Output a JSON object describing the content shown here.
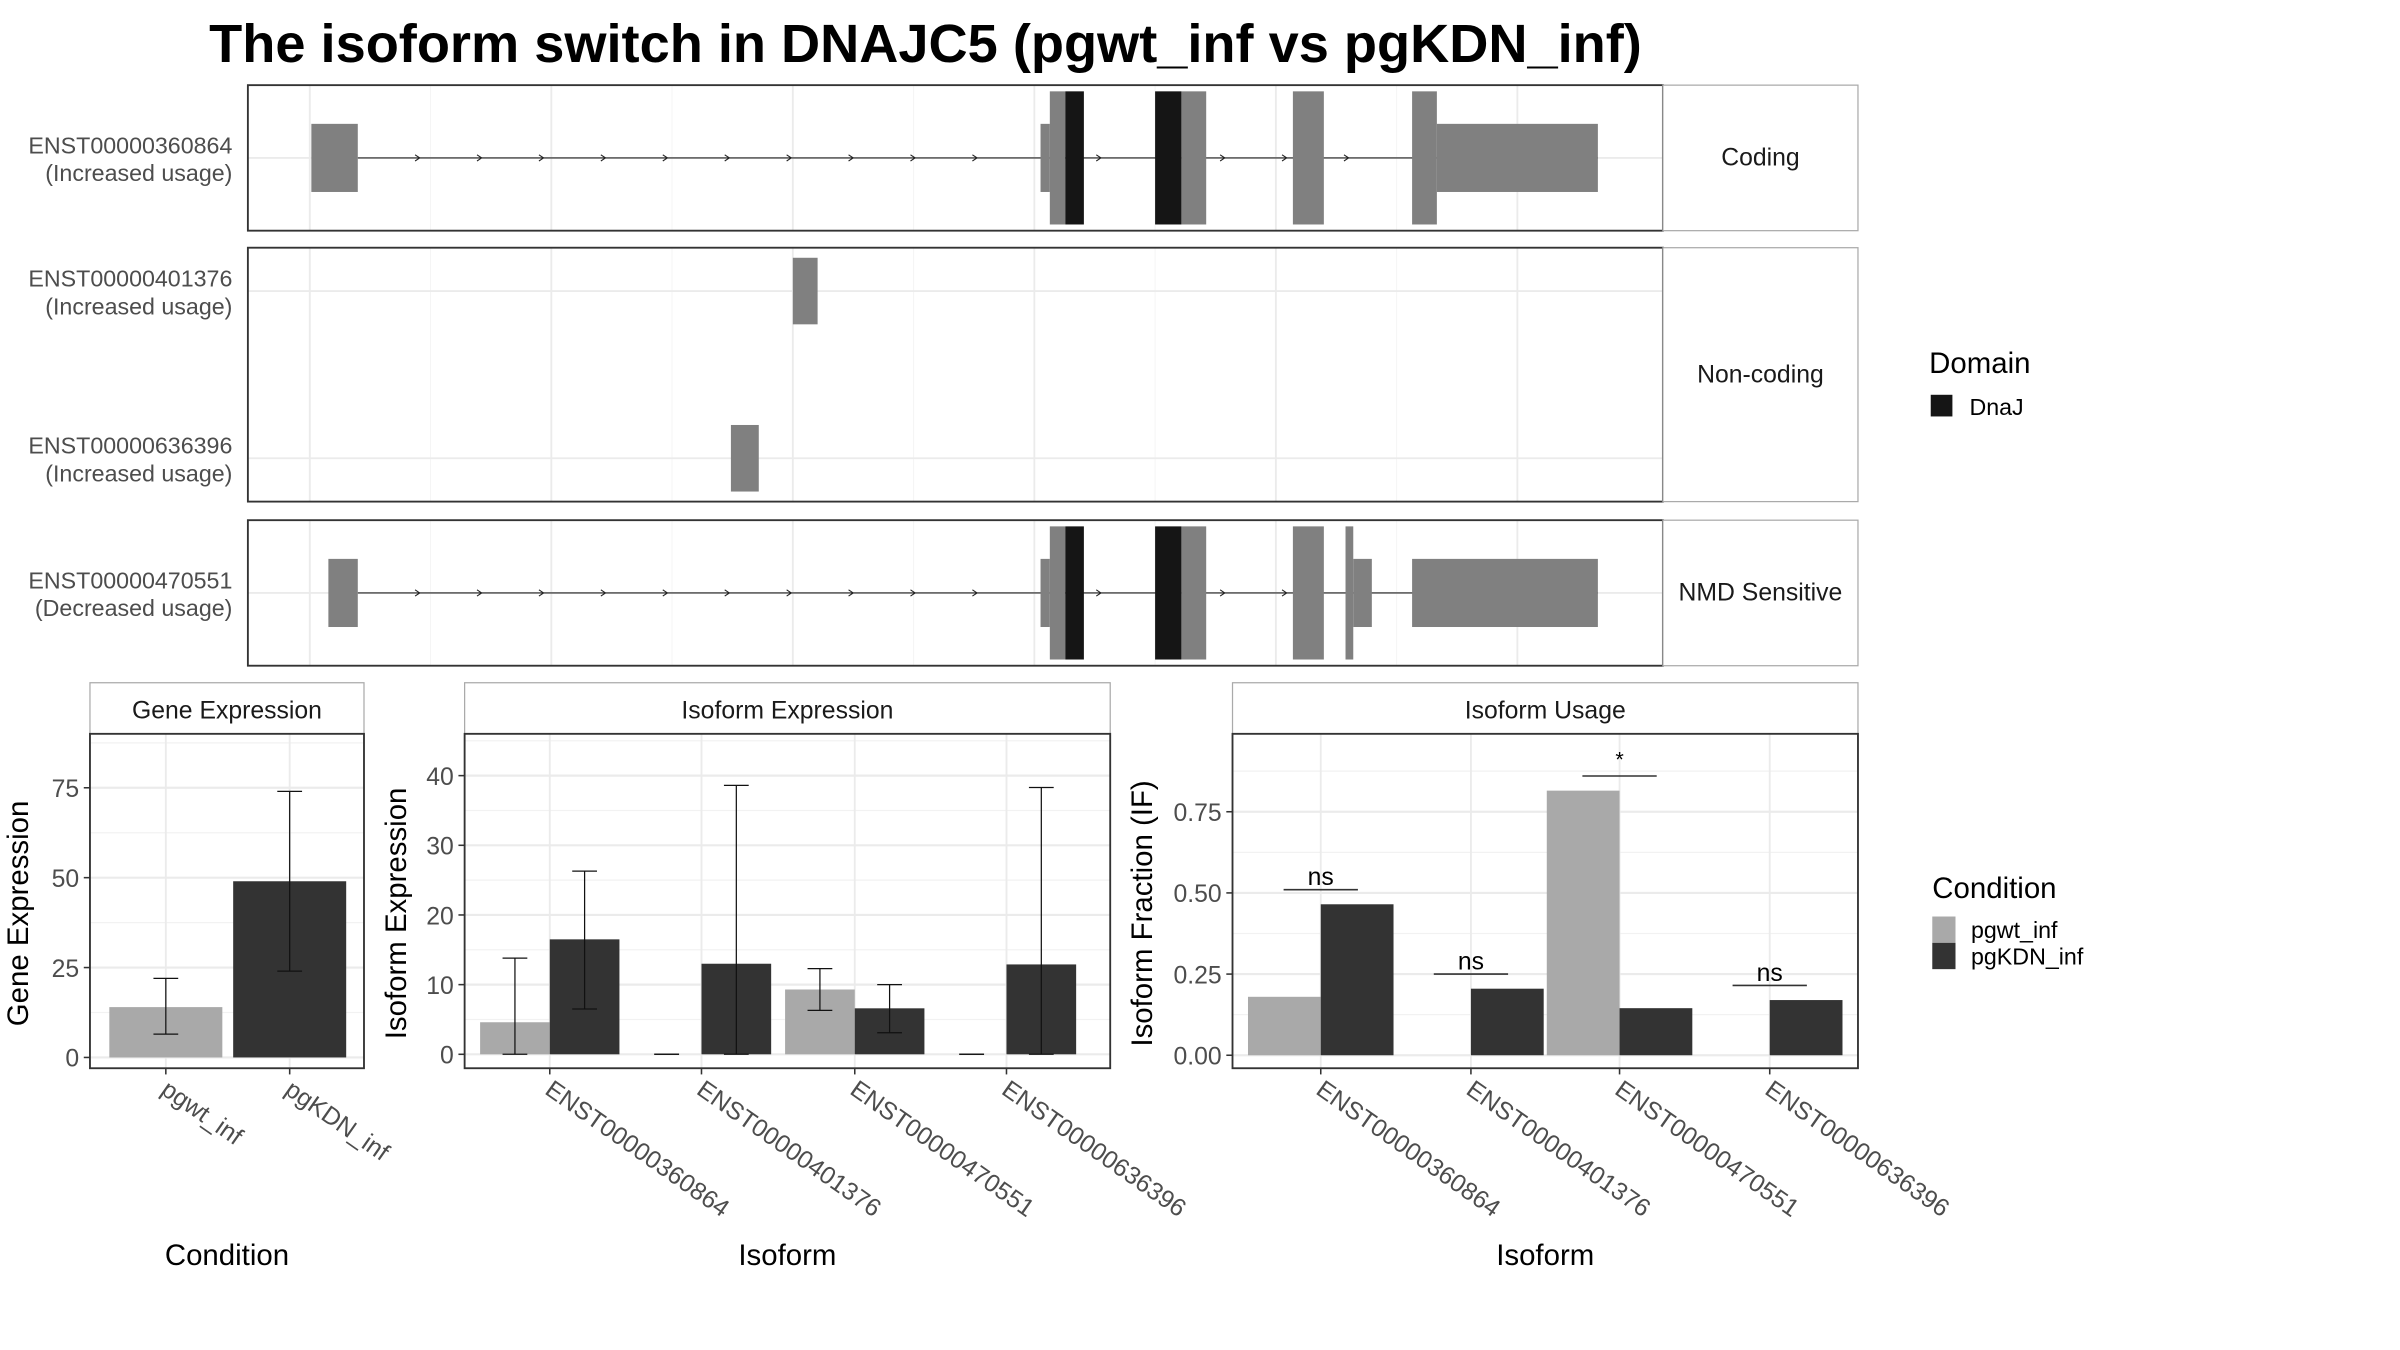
{
  "title": "The isoform switch in DNAJC5 (pgwt_inf vs pgKDN_inf)",
  "colors": {
    "pgwt_inf": "#a9a9a9",
    "pgKDN_inf": "#333333",
    "exon": "#808080",
    "domain": "#151515",
    "grid": "#ebebeb"
  },
  "transcript_panels": [
    {
      "strip": "Coding",
      "transcripts": [
        {
          "id": "ENST00000360864",
          "note": "(Increased usage)"
        }
      ]
    },
    {
      "strip": "Non-coding",
      "transcripts": [
        {
          "id": "ENST00000401376",
          "note": "(Increased usage)"
        },
        {
          "id": "ENST00000636396",
          "note": "(Increased usage)"
        }
      ]
    },
    {
      "strip": "NMD Sensitive",
      "transcripts": [
        {
          "id": "ENST00000470551",
          "note": "(Decreased usage)"
        }
      ]
    }
  ],
  "domain_legend": {
    "title": "Domain",
    "items": [
      "DnaJ"
    ]
  },
  "condition_legend": {
    "title": "Condition",
    "items": [
      "pgwt_inf",
      "pgKDN_inf"
    ]
  },
  "chart_data": [
    {
      "type": "bar",
      "title": "Gene Expression",
      "xlabel": "Condition",
      "ylabel": "Gene Expression",
      "ylim": [
        -3,
        90
      ],
      "yticks": [
        "0",
        "25",
        "50",
        "75"
      ],
      "categories": [
        "pgwt_inf",
        "pgKDN_inf"
      ],
      "values": [
        14,
        49
      ],
      "errors": [
        [
          6.5,
          22
        ],
        [
          24,
          74
        ]
      ]
    },
    {
      "type": "bar",
      "title": "Isoform Expression",
      "xlabel": "Isoform",
      "ylabel": "Isoform Expression",
      "ylim": [
        -2,
        46
      ],
      "yticks": [
        "0",
        "10",
        "20",
        "30",
        "40"
      ],
      "categories": [
        "ENST00000360864",
        "ENST00000401376",
        "ENST00000470551",
        "ENST00000636396"
      ],
      "series": [
        {
          "name": "pgwt_inf",
          "values": [
            4.6,
            0,
            9.3,
            0
          ],
          "errors": [
            [
              0,
              13.8
            ],
            [
              0,
              0
            ],
            [
              6.3,
              12.3
            ],
            [
              0,
              0
            ]
          ]
        },
        {
          "name": "pgKDN_inf",
          "values": [
            16.5,
            13,
            6.6,
            12.9
          ],
          "errors": [
            [
              6.5,
              26.3
            ],
            [
              0,
              38.6
            ],
            [
              3.1,
              10
            ],
            [
              0,
              38.3
            ]
          ]
        }
      ]
    },
    {
      "type": "bar",
      "title": "Isoform Usage",
      "xlabel": "Isoform",
      "ylabel": "Isoform Fraction (IF)",
      "ylim": [
        -0.04,
        0.99
      ],
      "yticks": [
        "0.00",
        "0.25",
        "0.50",
        "0.75"
      ],
      "categories": [
        "ENST00000360864",
        "ENST00000401376",
        "ENST00000470551",
        "ENST00000636396"
      ],
      "series": [
        {
          "name": "pgwt_inf",
          "values": [
            0.18,
            0,
            0.815,
            0
          ]
        },
        {
          "name": "pgKDN_inf",
          "values": [
            0.465,
            0.205,
            0.145,
            0.17
          ]
        }
      ],
      "significance": [
        {
          "label": "ns",
          "y": 0.51
        },
        {
          "label": "ns",
          "y": 0.25
        },
        {
          "label": "*",
          "y": 0.86
        },
        {
          "label": "ns",
          "y": 0.215
        }
      ]
    }
  ]
}
